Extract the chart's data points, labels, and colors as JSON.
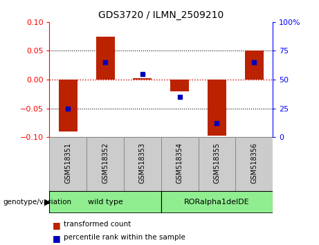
{
  "title": "GDS3720 / ILMN_2509210",
  "samples": [
    "GSM518351",
    "GSM518352",
    "GSM518353",
    "GSM518354",
    "GSM518355",
    "GSM518356"
  ],
  "red_bars": [
    -0.09,
    0.075,
    0.002,
    -0.02,
    -0.097,
    0.05
  ],
  "blue_squares_pct": [
    25,
    65,
    55,
    35,
    12,
    65
  ],
  "ylim_left": [
    -0.1,
    0.1
  ],
  "ylim_right": [
    0,
    100
  ],
  "yticks_left": [
    -0.1,
    -0.05,
    0,
    0.05,
    0.1
  ],
  "yticks_right": [
    0,
    25,
    50,
    75,
    100
  ],
  "ytick_labels_right": [
    "0",
    "25",
    "50",
    "75",
    "100%"
  ],
  "group_label": "genotype/variation",
  "group1_label": "wild type",
  "group2_label": "RORalpha1delDE",
  "bar_color": "#BB2200",
  "square_color": "#0000BB",
  "bar_width": 0.5,
  "legend_label_red": "transformed count",
  "legend_label_blue": "percentile rank within the sample",
  "zero_line_color": "#CC0000",
  "label_box_color": "#CCCCCC",
  "geno_color": "#90EE90",
  "title_fontsize": 10
}
